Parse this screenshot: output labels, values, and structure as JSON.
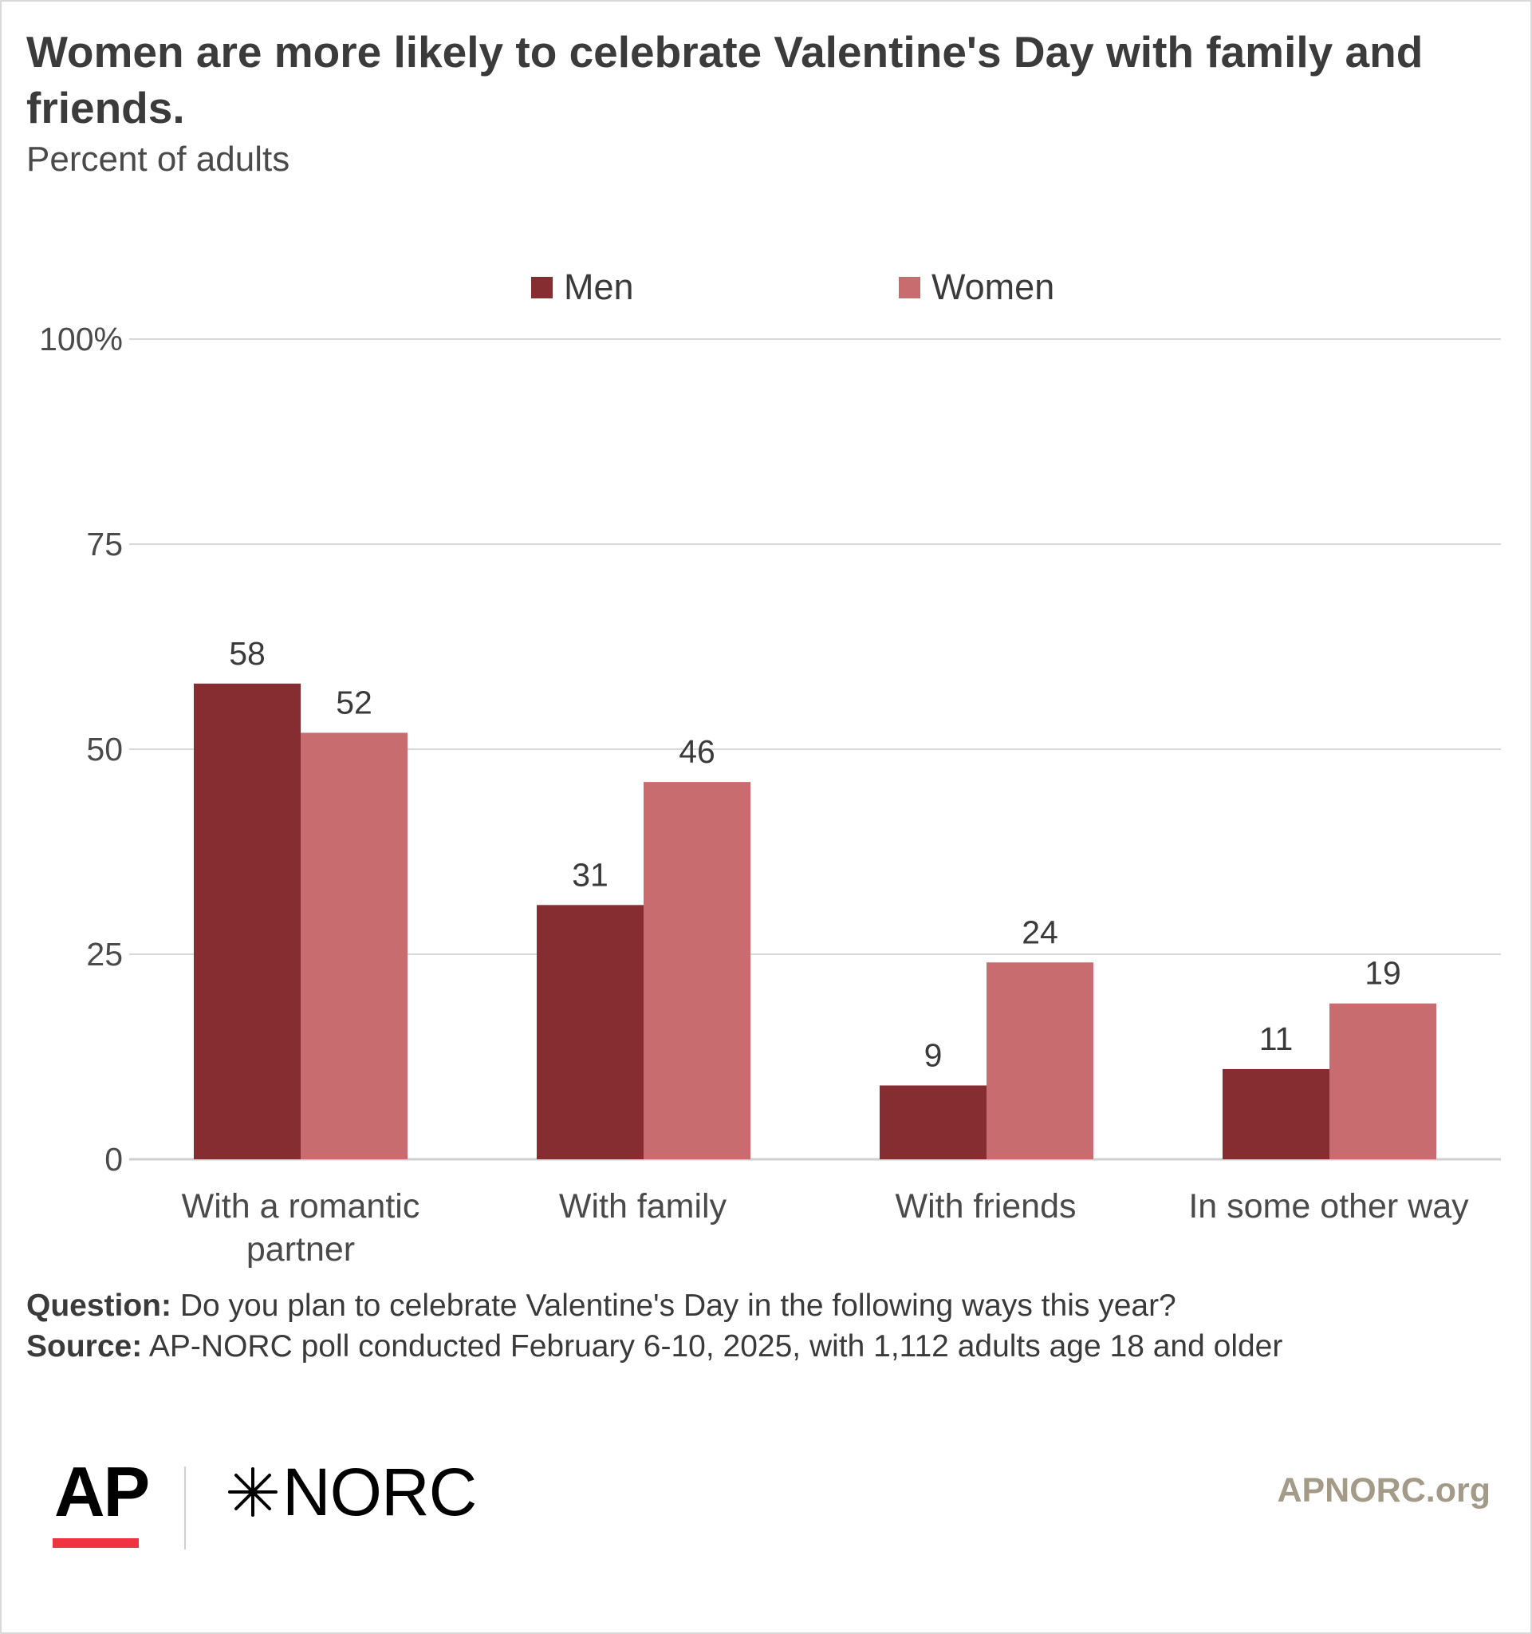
{
  "title": "Women are more likely to celebrate Valentine's Day with family and friends.",
  "subtitle": "Percent of adults",
  "colors": {
    "men": "#862d32",
    "women": "#c96c6f",
    "grid": "#d9d9d9",
    "axis": "#cfcfcf"
  },
  "chart_data": {
    "type": "bar",
    "title": "Women are more likely to celebrate Valentine's Day with family and friends.",
    "subtitle": "Percent of adults",
    "categories": [
      "With a romantic partner",
      "With family",
      "With friends",
      "In some other way"
    ],
    "series": [
      {
        "name": "Men",
        "values": [
          58,
          31,
          9,
          11
        ]
      },
      {
        "name": "Women",
        "values": [
          52,
          46,
          24,
          19
        ]
      }
    ],
    "y_ticks": [
      "0",
      "25",
      "50",
      "75",
      "100%"
    ],
    "y_tick_values": [
      0,
      25,
      50,
      75,
      100
    ],
    "ylim": [
      0,
      100
    ],
    "grid": true,
    "legend": "top-center",
    "xlabel": "",
    "ylabel": ""
  },
  "legend": {
    "men": "Men",
    "women": "Women"
  },
  "footer": {
    "question_label": "Question:",
    "question_text": " Do you plan to celebrate Valentine's Day in the following ways this year?",
    "source_label": "Source:",
    "source_text": " AP-NORC poll conducted February 6-10, 2025, with 1,112 adults age 18 and older"
  },
  "logos": {
    "ap": "AP",
    "norc": "NORC",
    "site": "APNORC.org"
  }
}
